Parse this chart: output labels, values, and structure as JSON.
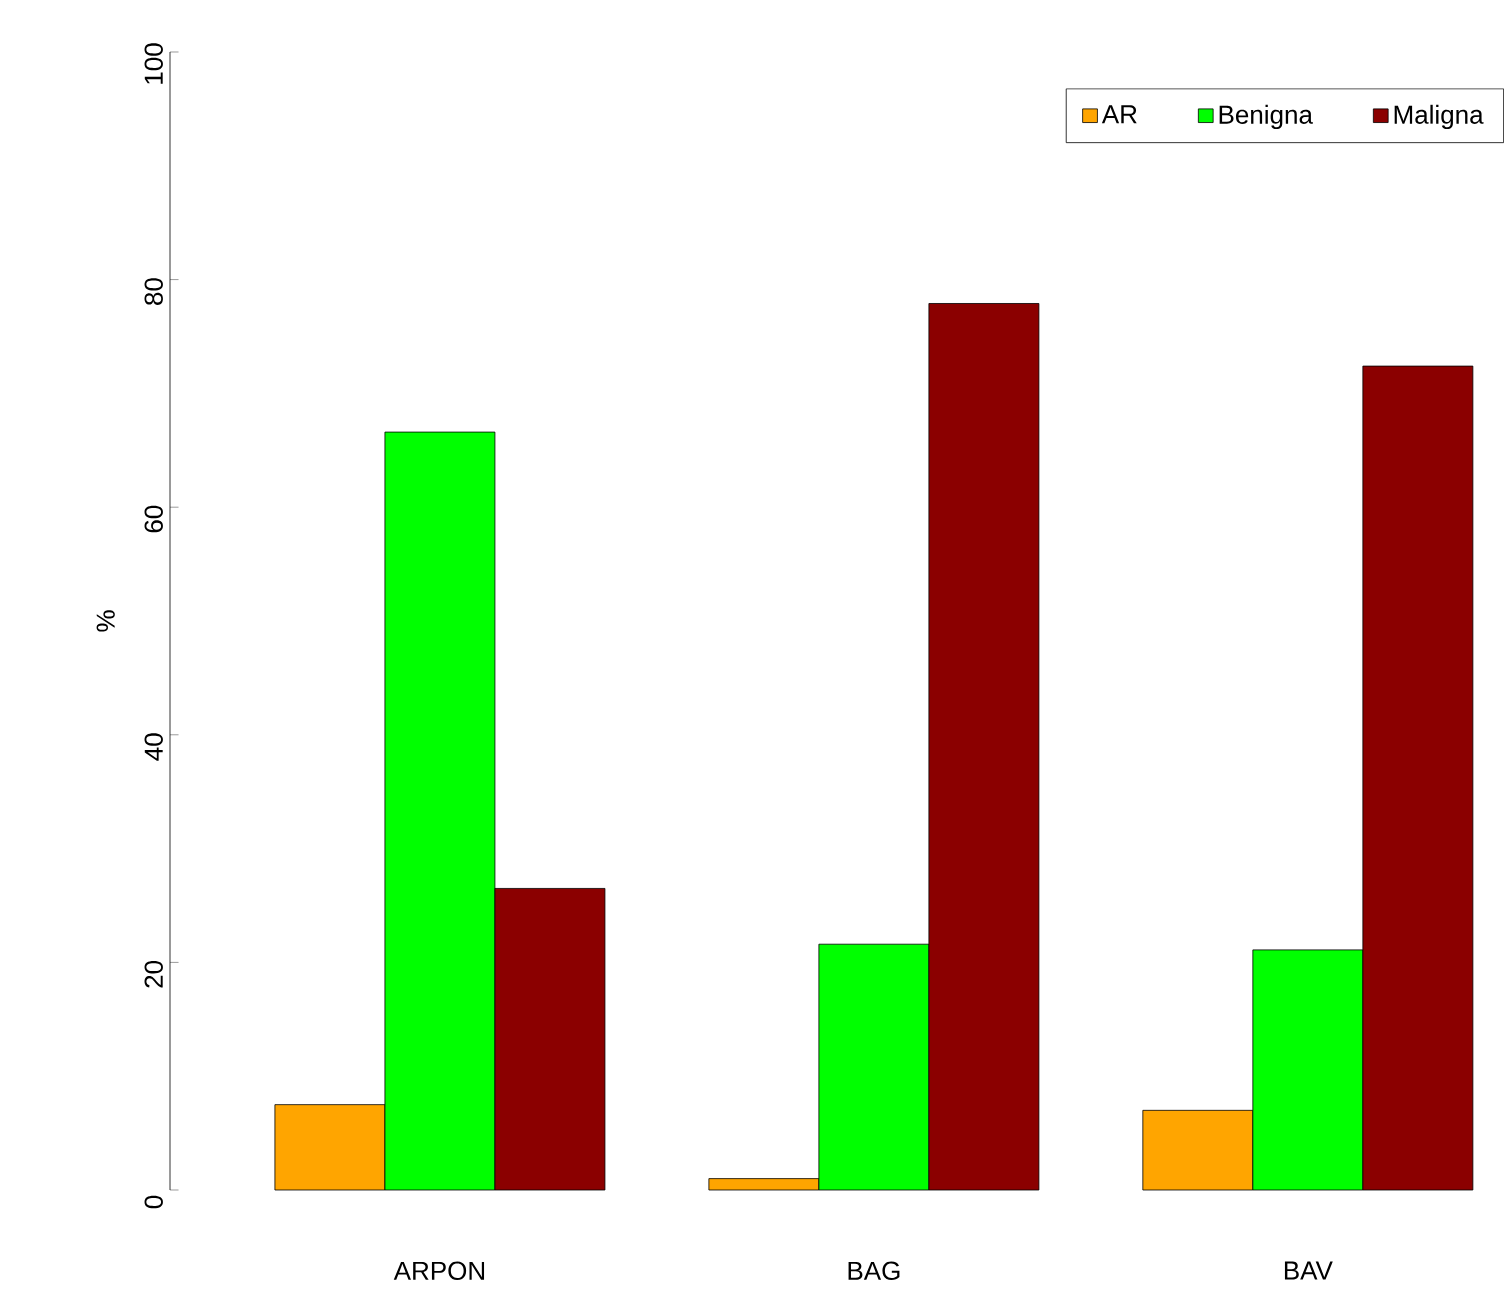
{
  "chart_data": {
    "type": "bar",
    "ylabel": "%",
    "categories": [
      "ARPON",
      "BAG",
      "BAV"
    ],
    "series": [
      {
        "name": "AR",
        "color": "#ffa500",
        "values": [
          7.5,
          1.0,
          7.0
        ]
      },
      {
        "name": "Benigna",
        "color": "#00ff00",
        "values": [
          66.6,
          21.6,
          21.1
        ]
      },
      {
        "name": "Maligna",
        "color": "#8b0000",
        "values": [
          26.5,
          77.9,
          72.4
        ]
      }
    ],
    "ylim": [
      0,
      100
    ],
    "yticks": [
      0,
      20,
      40,
      60,
      80,
      100
    ],
    "legend": "top right",
    "grid": false
  }
}
